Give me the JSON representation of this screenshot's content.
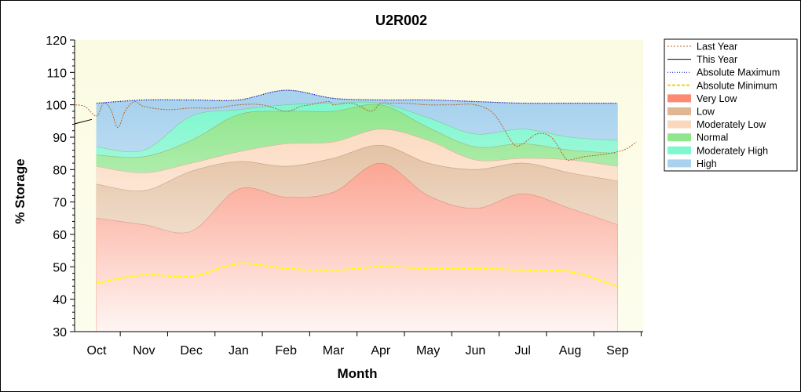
{
  "chart_data": {
    "type": "area",
    "title": "U2R002",
    "xlabel": "Month",
    "ylabel": "% Storage",
    "ylim": [
      30,
      120
    ],
    "yticks": [
      30,
      40,
      50,
      60,
      70,
      80,
      90,
      100,
      110,
      120
    ],
    "categories": [
      "Oct",
      "Nov",
      "Dec",
      "Jan",
      "Feb",
      "Mar",
      "Apr",
      "May",
      "Jun",
      "Jul",
      "Aug",
      "Sep"
    ],
    "grid": false,
    "legend_position": "right",
    "bands": [
      {
        "name": "Very Low",
        "color": "#fa8a72",
        "values": [
          65,
          63,
          61,
          74,
          71.5,
          73,
          82,
          72,
          68,
          72.5,
          68,
          63
        ]
      },
      {
        "name": "Low",
        "color": "#dfb793",
        "values": [
          75.5,
          73.5,
          79.5,
          82.5,
          81,
          83.5,
          87.5,
          82,
          80,
          82,
          79,
          76.5
        ]
      },
      {
        "name": "Moderately Low",
        "color": "#fbd8bc",
        "values": [
          81,
          79,
          82,
          85.5,
          88,
          88.5,
          92.5,
          89,
          83,
          83.5,
          83,
          81
        ]
      },
      {
        "name": "Normal",
        "color": "#8fe68c",
        "values": [
          84.5,
          84,
          89,
          97,
          98,
          98,
          100,
          93,
          87,
          88,
          86,
          85
        ]
      },
      {
        "name": "Moderately High",
        "color": "#7ff7cf",
        "values": [
          87,
          86,
          96.5,
          98.5,
          100,
          100.5,
          100.5,
          96,
          91,
          92.5,
          90,
          89
        ]
      },
      {
        "name": "High",
        "color": "#a8d2ee",
        "values": [
          100.5,
          101.5,
          101.5,
          101.5,
          104.5,
          102,
          101.5,
          101.5,
          101,
          100.5,
          100.5,
          100.5
        ]
      }
    ],
    "series": [
      {
        "name": "Absolute Maximum",
        "color": "#0000cc",
        "values": [
          100.5,
          101.5,
          101.5,
          101.5,
          104.5,
          102,
          101.5,
          101.5,
          101,
          100.5,
          100.5,
          100.5
        ]
      },
      {
        "name": "Absolute Minimum",
        "color": "#ffff00",
        "values": [
          45,
          47.5,
          47,
          51,
          49.5,
          49,
          50,
          49.5,
          49.5,
          49,
          48.5,
          44
        ]
      }
    ],
    "last_year": {
      "name": "Last Year",
      "color": "#b8642a",
      "x": [
        -0.5,
        -0.25,
        0,
        0.15,
        0.3,
        0.45,
        0.6,
        0.8,
        1,
        1.5,
        2,
        2.5,
        3,
        3.5,
        4,
        4.3,
        4.5,
        4.9,
        5,
        5.3,
        5.5,
        5.8,
        6,
        6.2,
        6.5,
        7,
        7.5,
        8,
        8.4,
        8.8,
        9,
        9.3,
        9.6,
        9.9,
        10,
        10.3,
        10.6,
        11,
        11.2,
        11.4
      ],
      "values": [
        100,
        99.5,
        96.5,
        100.5,
        98.5,
        93,
        98,
        101,
        99.5,
        98.5,
        99,
        99,
        100,
        100,
        98,
        99.5,
        100,
        101,
        100,
        100.5,
        100,
        98,
        100.5,
        100.5,
        100.5,
        100,
        100,
        100,
        97,
        88,
        88,
        91,
        90,
        83.5,
        83,
        84,
        84.5,
        85.5,
        86.5,
        88.5
      ]
    },
    "this_year": {
      "name": "This Year",
      "color": "#000000",
      "x": [
        -0.5,
        -0.1
      ],
      "values": [
        94,
        95.5
      ]
    }
  },
  "legend": [
    {
      "label": "Last Year",
      "kind": "line",
      "color": "#b8642a",
      "dash": "2,2"
    },
    {
      "label": "This Year",
      "kind": "line",
      "color": "#000000",
      "dash": ""
    },
    {
      "label": "Absolute Maximum",
      "kind": "line",
      "color": "#0000cc",
      "dash": "1,2"
    },
    {
      "label": "Absolute Minimum",
      "kind": "line",
      "color": "#e6d800",
      "dash": "4,2"
    },
    {
      "label": "Very Low",
      "kind": "swatch",
      "color": "#fa8a72"
    },
    {
      "label": "Low",
      "kind": "swatch",
      "color": "#dfb793"
    },
    {
      "label": "Moderately Low",
      "kind": "swatch",
      "color": "#fbd8bc"
    },
    {
      "label": "Normal",
      "kind": "swatch",
      "color": "#8fe68c"
    },
    {
      "label": "Moderately High",
      "kind": "swatch",
      "color": "#7ff7cf"
    },
    {
      "label": "High",
      "kind": "swatch",
      "color": "#a8d2ee"
    }
  ]
}
